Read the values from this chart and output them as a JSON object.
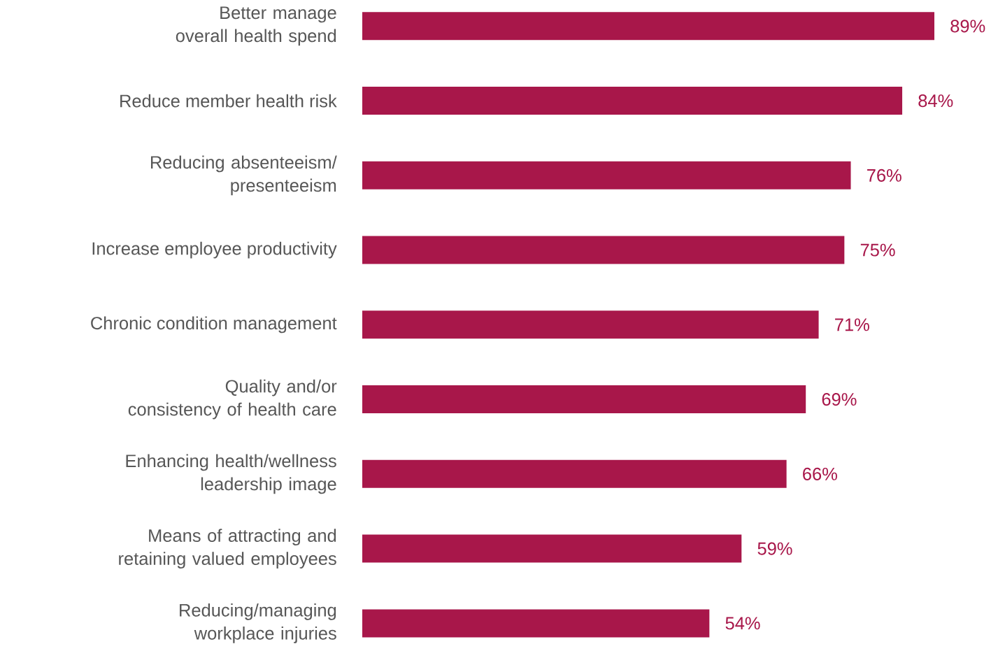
{
  "chart_data": {
    "type": "bar",
    "orientation": "horizontal",
    "categories": [
      "Better manage overall health spend",
      "Reduce member health risk",
      "Reducing absenteeism/ presenteeism",
      "Increase employee productivity",
      "Chronic condition management",
      "Quality and/or consistency of health care",
      "Enhancing health/wellness leadership image",
      "Means of attracting and retaining valued employees",
      "Reducing/managing workplace injuries"
    ],
    "values": [
      89,
      84,
      76,
      75,
      71,
      69,
      66,
      59,
      54
    ],
    "value_labels": [
      "89%",
      "84%",
      "76%",
      "75%",
      "71%",
      "69%",
      "66%",
      "59%",
      "54%"
    ],
    "color": "#a8174a"
  }
}
